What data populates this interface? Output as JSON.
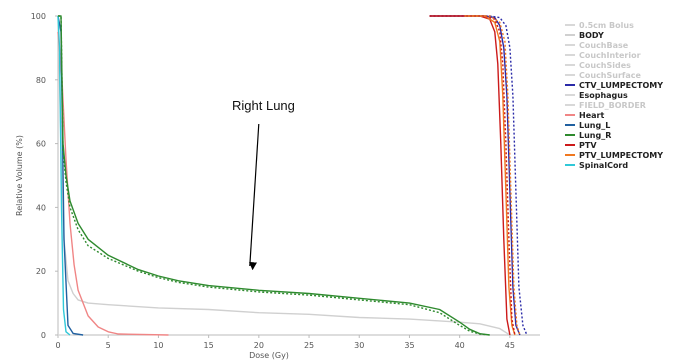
{
  "chart_data": {
    "type": "line",
    "xlabel": "Dose (Gy)",
    "ylabel": "Relative Volume (%)",
    "xlim": [
      0,
      48
    ],
    "ylim": [
      0,
      100
    ],
    "xticks": [
      0,
      5,
      10,
      15,
      20,
      25,
      30,
      35,
      40,
      45
    ],
    "yticks": [
      0,
      20,
      40,
      60,
      80,
      100
    ],
    "grid": false,
    "legend_position": "right",
    "annotation": {
      "text": "Right Lung",
      "arrow_target": [
        19,
        21
      ]
    },
    "series": [
      {
        "name": "0.5cm Bolus",
        "color": "#d8d8d8",
        "style": "solid",
        "x": [
          0,
          0.5,
          1,
          1.5
        ],
        "y": [
          0,
          0,
          0,
          0
        ]
      },
      {
        "name": "BODY",
        "color": "#d0d0d0",
        "style": "solid",
        "x": [
          0,
          0.3,
          0.6,
          1,
          1.5,
          2,
          3,
          5,
          10,
          15,
          20,
          25,
          30,
          35,
          40,
          42,
          44,
          45
        ],
        "y": [
          100,
          60,
          30,
          17,
          13,
          11,
          10,
          9.5,
          8.5,
          8,
          7,
          6.5,
          5.5,
          5,
          4,
          3.5,
          2,
          0
        ]
      },
      {
        "name": "CouchBase",
        "color": "#d8d8d8",
        "style": "solid",
        "x": [],
        "y": []
      },
      {
        "name": "CouchInterior",
        "color": "#d8d8d8",
        "style": "solid",
        "x": [],
        "y": []
      },
      {
        "name": "CouchSides",
        "color": "#d8d8d8",
        "style": "solid",
        "x": [],
        "y": []
      },
      {
        "name": "CouchSurface",
        "color": "#d8d8d8",
        "style": "solid",
        "x": [],
        "y": []
      },
      {
        "name": "CTV_LUMPECTOMY",
        "color": "#2a2aa8",
        "style": "solid",
        "x": [
          37,
          42.5,
          43.5,
          44,
          44.4,
          44.7,
          45,
          45.3,
          45.6,
          46
        ],
        "y": [
          100,
          100,
          99.5,
          97,
          90,
          75,
          45,
          15,
          3,
          0
        ]
      },
      {
        "name": "Esophagus",
        "color": "#d8d8d8",
        "style": "solid",
        "x": [],
        "y": []
      },
      {
        "name": "FIELD_BORDER",
        "color": "#d8d8d8",
        "style": "solid",
        "x": [],
        "y": []
      },
      {
        "name": "Heart",
        "color": "#f08585",
        "style": "solid",
        "x": [
          0,
          0.4,
          0.8,
          1.2,
          1.6,
          2,
          3,
          4,
          5,
          6,
          11
        ],
        "y": [
          95,
          80,
          55,
          35,
          22,
          14,
          6,
          2.5,
          1,
          0.3,
          0
        ]
      },
      {
        "name": "Lung_L",
        "color": "#2060a0",
        "style": "solid",
        "x": [
          0,
          0.3,
          0.6,
          1,
          1.5,
          2.5
        ],
        "y": [
          100,
          95,
          30,
          3,
          0.5,
          0
        ]
      },
      {
        "name": "Lung_R",
        "color": "#2e8a2e",
        "style": "solid",
        "x": [
          0,
          0.3,
          0.5,
          0.8,
          1.2,
          2,
          3,
          5,
          8,
          10,
          12,
          15,
          20,
          25,
          30,
          35,
          38,
          40,
          41,
          42,
          43
        ],
        "y": [
          100,
          100,
          60,
          50,
          42,
          35,
          30,
          25,
          20.5,
          18.5,
          17,
          15.5,
          14,
          13,
          11.5,
          10,
          8,
          4,
          1.8,
          0.4,
          0
        ]
      },
      {
        "name": "PTV",
        "color": "#cc1a1a",
        "style": "solid",
        "x": [
          37,
          42,
          43,
          43.5,
          43.8,
          44.1,
          44.4,
          44.7,
          45
        ],
        "y": [
          100,
          100,
          99,
          95,
          85,
          60,
          30,
          5,
          0
        ]
      },
      {
        "name": "PTV_LUMPECTOMY",
        "color": "#f07820",
        "style": "solid",
        "x": [
          40.5,
          42.5,
          43.5,
          44,
          44.3,
          44.6,
          44.9,
          45.2,
          45.5
        ],
        "y": [
          100,
          100,
          98,
          92,
          75,
          45,
          15,
          3,
          0
        ]
      },
      {
        "name": "SpinalCord",
        "color": "#30c8d8",
        "style": "solid",
        "x": [
          0,
          0.15,
          0.35,
          0.55,
          0.8,
          1.2
        ],
        "y": [
          100,
          90,
          40,
          8,
          1,
          0
        ]
      },
      {
        "name": "Lung_R (dotted)",
        "color": "#2e8a2e",
        "style": "dotted",
        "x": [
          0,
          0.3,
          0.5,
          0.8,
          1.2,
          2,
          3,
          5,
          8,
          10,
          12,
          15,
          20,
          25,
          30,
          35,
          38,
          40,
          41,
          42,
          43
        ],
        "y": [
          100,
          100,
          58,
          48,
          40,
          33,
          28,
          24,
          20,
          18,
          16.5,
          15,
          13.5,
          12.5,
          11,
          9.5,
          7,
          3,
          1.2,
          0.3,
          0
        ]
      },
      {
        "name": "CTV_LUMPECTOMY (dotted)",
        "color": "#2a2aa8",
        "style": "dotted",
        "x": [
          37,
          43,
          44,
          44.6,
          45,
          45.3,
          45.6,
          45.9,
          46.3,
          46.7
        ],
        "y": [
          100,
          100,
          99.5,
          97,
          90,
          75,
          45,
          15,
          3,
          0
        ]
      },
      {
        "name": "PTV (dotted)",
        "color": "#cc1a1a",
        "style": "dotted",
        "x": [
          37,
          42.5,
          43.5,
          44,
          44.3,
          44.6,
          44.9,
          45.2,
          45.5
        ],
        "y": [
          100,
          100,
          99,
          95,
          85,
          60,
          30,
          5,
          0
        ]
      },
      {
        "name": "PTV_LUMPECTOMY (dotted)",
        "color": "#f07820",
        "style": "dotted",
        "x": [
          40.5,
          43,
          44,
          44.5,
          44.8,
          45.1,
          45.4,
          45.7,
          46
        ],
        "y": [
          100,
          100,
          98,
          92,
          75,
          45,
          15,
          3,
          0
        ]
      }
    ],
    "legend": [
      {
        "name": "0.5cm Bolus",
        "color": "#d8d8d8",
        "faded": true
      },
      {
        "name": "BODY",
        "color": "#d0d0d0",
        "faded": false
      },
      {
        "name": "CouchBase",
        "color": "#d8d8d8",
        "faded": true
      },
      {
        "name": "CouchInterior",
        "color": "#d8d8d8",
        "faded": true
      },
      {
        "name": "CouchSides",
        "color": "#d8d8d8",
        "faded": true
      },
      {
        "name": "CouchSurface",
        "color": "#d8d8d8",
        "faded": true
      },
      {
        "name": "CTV_LUMPECTOMY",
        "color": "#2a2aa8",
        "faded": false
      },
      {
        "name": "Esophagus",
        "color": "#d8d8d8",
        "faded": false
      },
      {
        "name": "FIELD_BORDER",
        "color": "#d8d8d8",
        "faded": true
      },
      {
        "name": "Heart",
        "color": "#f08585",
        "faded": false
      },
      {
        "name": "Lung_L",
        "color": "#2060a0",
        "faded": false
      },
      {
        "name": "Lung_R",
        "color": "#2e8a2e",
        "faded": false
      },
      {
        "name": "PTV",
        "color": "#cc1a1a",
        "faded": false
      },
      {
        "name": "PTV_LUMPECTOMY",
        "color": "#f07820",
        "faded": false
      },
      {
        "name": "SpinalCord",
        "color": "#30c8d8",
        "faded": false
      }
    ]
  }
}
